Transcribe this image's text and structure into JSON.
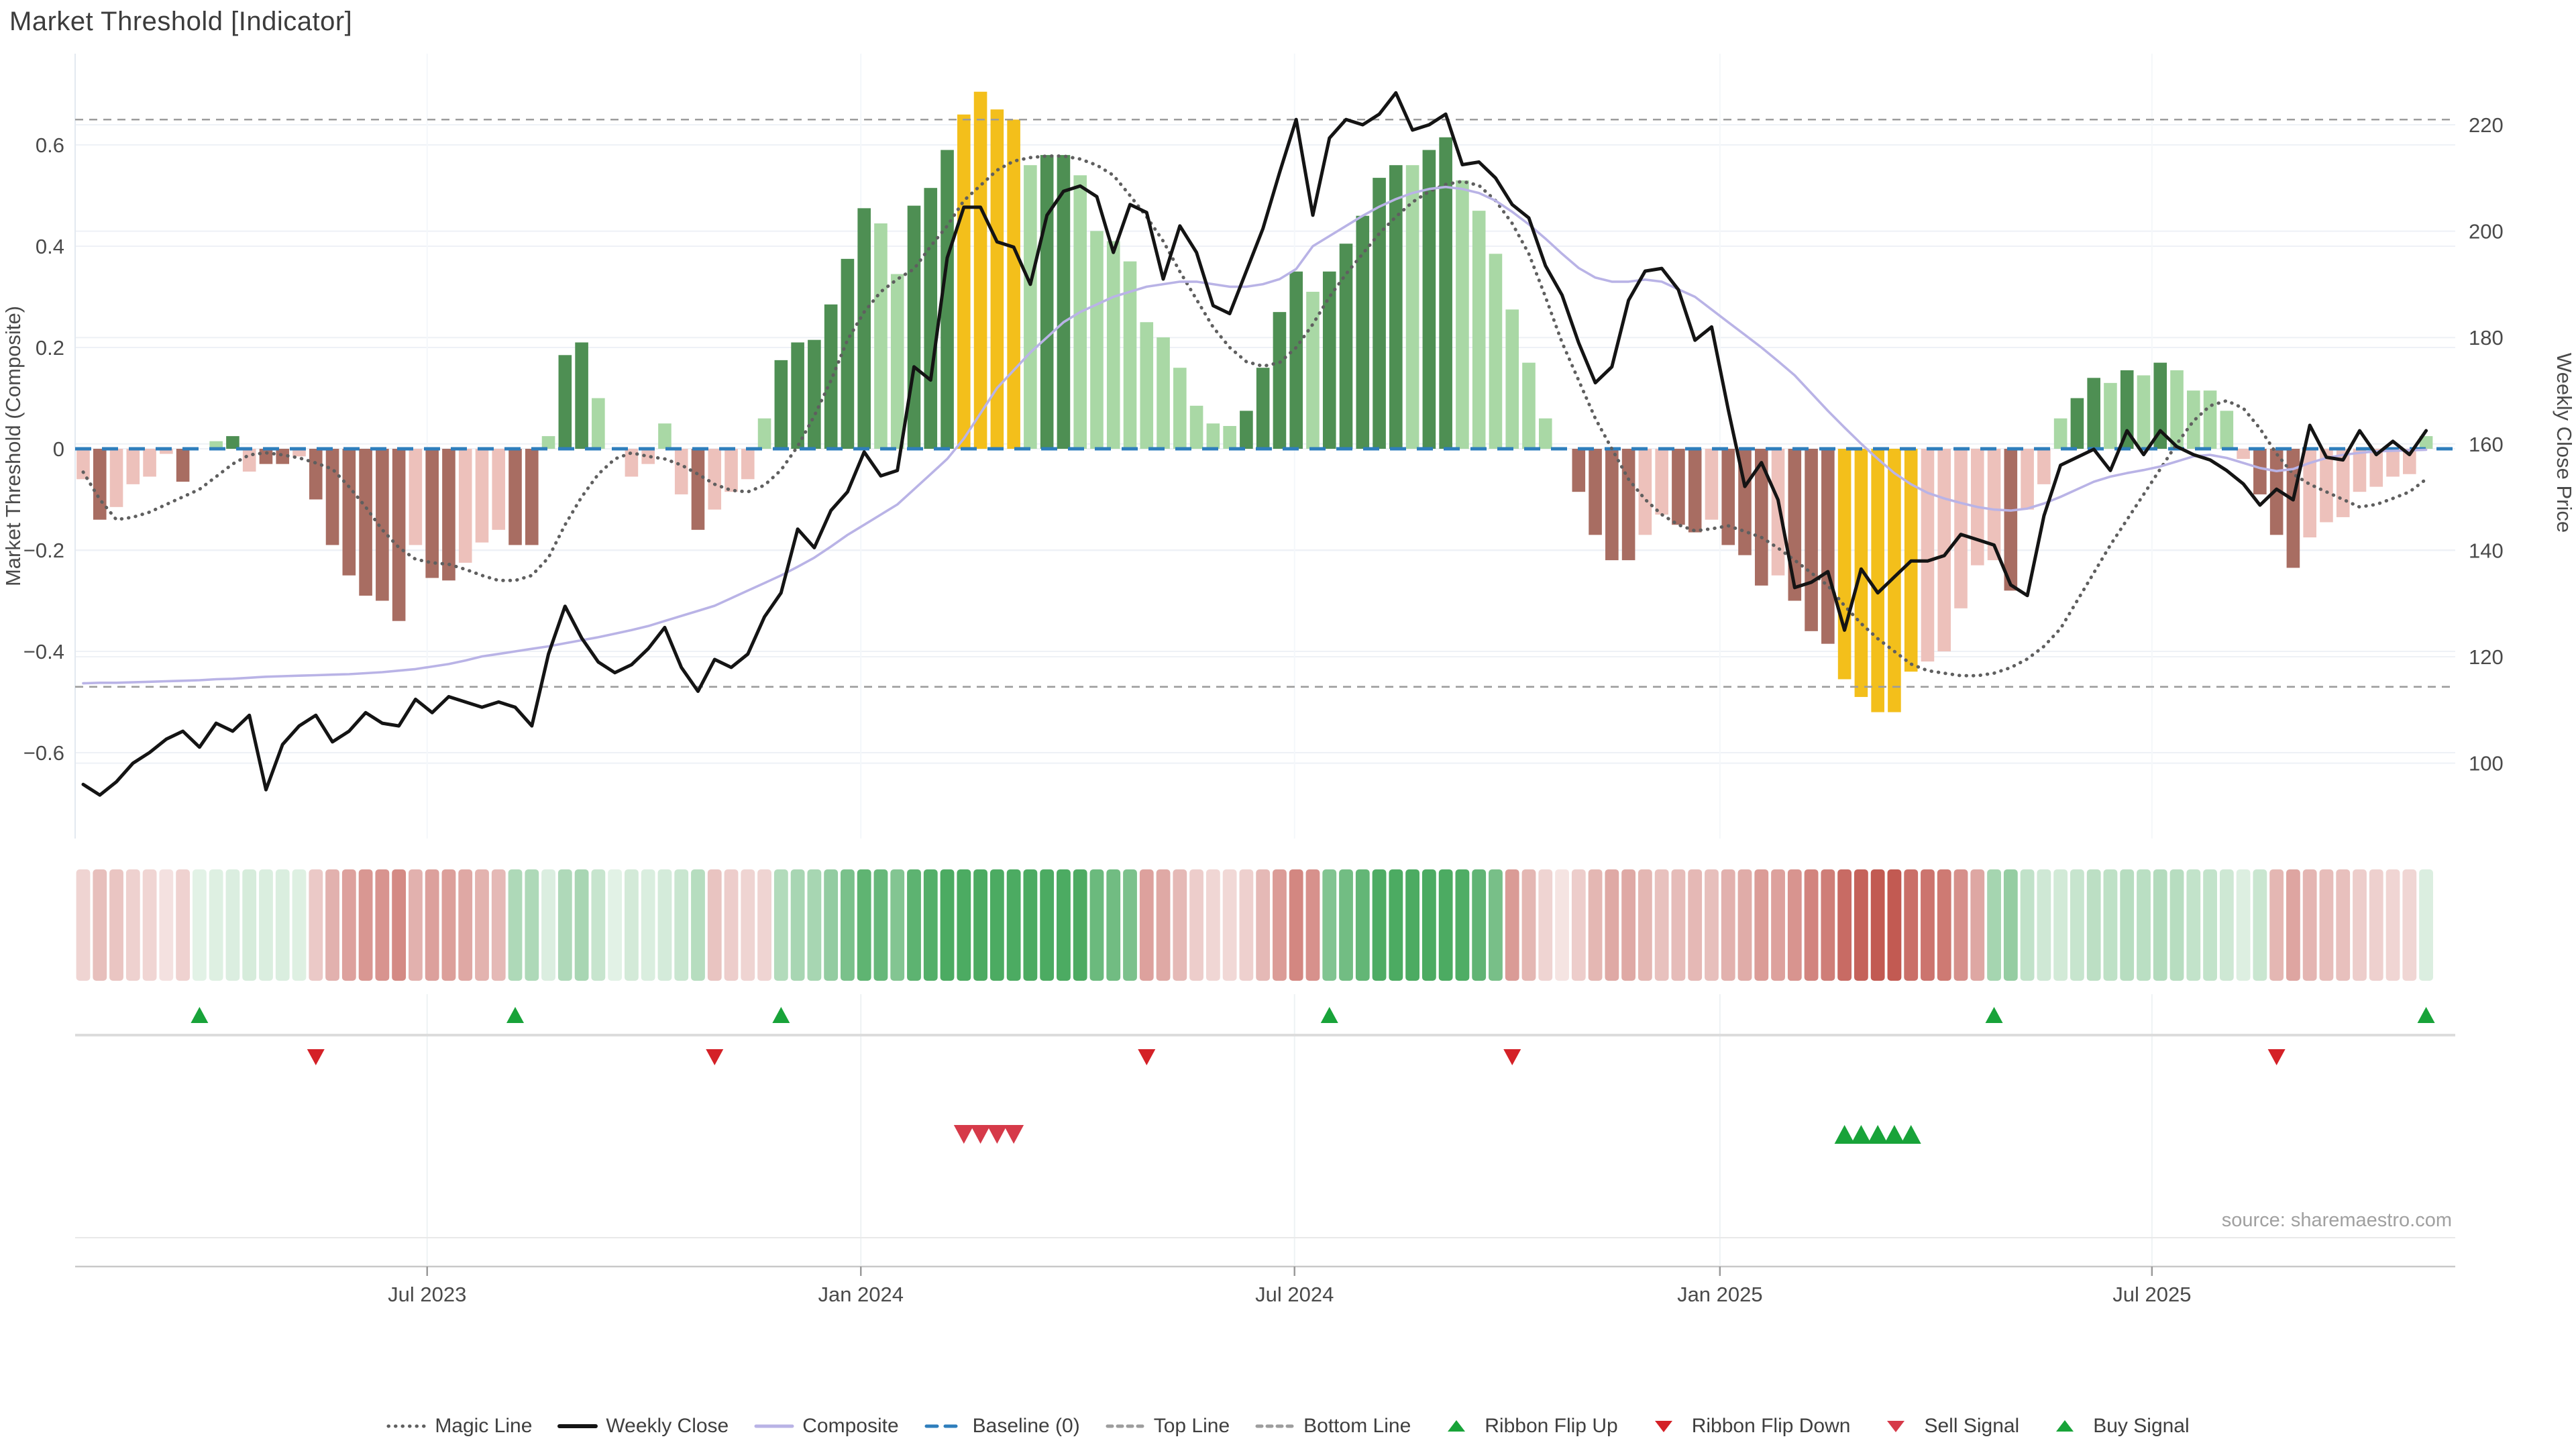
{
  "title": "Market Threshold [Indicator]",
  "footer": {
    "source": "source: sharemaestro.com"
  },
  "axes": {
    "left_label": "Market Threshold (Composite)",
    "right_label": "Weekly Close Price",
    "left_ticks": [
      "0.6",
      "0.4",
      "0.2",
      "0",
      "−0.2",
      "−0.4",
      "−0.6"
    ],
    "left_tick_values": [
      0.6,
      0.4,
      0.2,
      0,
      -0.2,
      -0.4,
      -0.6
    ],
    "right_ticks": [
      "220",
      "200",
      "180",
      "160",
      "140",
      "120",
      "100"
    ],
    "right_tick_values": [
      220,
      200,
      180,
      160,
      140,
      120,
      100
    ],
    "x_tick_labels": [
      "Jul 2023",
      "Jan 2024",
      "Jul 2024",
      "Jan 2025",
      "Jul 2025"
    ],
    "x_tick_weeks": [
      20.7,
      46.8,
      72.9,
      98.5,
      124.5
    ]
  },
  "legend": {
    "items": [
      {
        "label": "Magic Line",
        "marker": "dotted",
        "color": "#5f5f5f"
      },
      {
        "label": "Weekly Close",
        "marker": "solid",
        "color": "#141414"
      },
      {
        "label": "Composite",
        "marker": "thin",
        "color": "#b9b3e6"
      },
      {
        "label": "Baseline (0)",
        "marker": "dashed",
        "color": "#2e7ebc"
      },
      {
        "label": "Top Line",
        "marker": "dashsmall",
        "color": "#9c9c9c"
      },
      {
        "label": "Bottom Line",
        "marker": "dashsmall",
        "color": "#9c9c9c"
      },
      {
        "label": "Ribbon Flip Up",
        "marker": "triup",
        "color": "#18a339"
      },
      {
        "label": "Ribbon Flip Down",
        "marker": "tridown",
        "color": "#d42127"
      },
      {
        "label": "Sell Signal",
        "marker": "tridown",
        "color": "#d63a49"
      },
      {
        "label": "Buy Signal",
        "marker": "triup",
        "color": "#18a339"
      }
    ]
  },
  "colors": {
    "bar_light_green": "#a9d8a5",
    "bar_dark_green": "#4e8f53",
    "bar_light_red": "#edc1bb",
    "bar_dark_red": "#a86d62",
    "bar_extreme": "#f3bf1b",
    "close_line": "#141414",
    "composite_line": "#b9b3e6",
    "magic_line": "#5f5f5f",
    "baseline": "#2e7ebc",
    "threshold_line": "#9c9c9c",
    "flip_up": "#18a339",
    "flip_down": "#d42127",
    "sell": "#d63a49",
    "buy": "#18a339",
    "ribbon_green": "#4cab62",
    "ribbon_red": "#c0544c",
    "grid": "#eef1f6",
    "panel_line": "#dcdcdc",
    "axis_line": "#c9c9c9",
    "text": "#4a4a4a"
  },
  "chart_data": {
    "type": "combo",
    "x_unit": "weeks",
    "n_weeks": 142,
    "title": "Market Threshold [Indicator]",
    "ylabel_left": "Market Threshold (Composite)",
    "ylabel_right": "Weekly Close Price",
    "ylim_left": [
      -0.78,
      0.78
    ],
    "ylim_right": [
      96,
      228
    ],
    "top_line": 0.65,
    "bottom_line": -0.47,
    "baseline": 0,
    "bars": {
      "name": "Market Threshold (Composite) histogram",
      "values": [
        -0.06,
        -0.14,
        -0.115,
        -0.07,
        -0.055,
        -0.01,
        -0.065,
        0,
        0.015,
        0.025,
        -0.045,
        -0.03,
        -0.03,
        -0.015,
        -0.1,
        -0.19,
        -0.25,
        -0.29,
        -0.3,
        -0.34,
        -0.19,
        -0.255,
        -0.26,
        -0.225,
        -0.185,
        -0.16,
        -0.19,
        -0.19,
        0.025,
        0.185,
        0.21,
        0.1,
        0,
        -0.055,
        -0.03,
        0.05,
        -0.09,
        -0.16,
        -0.12,
        -0.085,
        -0.06,
        0.06,
        0.175,
        0.21,
        0.215,
        0.285,
        0.375,
        0.475,
        0.445,
        0.345,
        0.48,
        0.515,
        0.59,
        0.66,
        0.705,
        0.67,
        0.65,
        0.56,
        0.58,
        0.58,
        0.54,
        0.43,
        0.41,
        0.37,
        0.25,
        0.22,
        0.16,
        0.085,
        0.05,
        0.045,
        0.075,
        0.16,
        0.27,
        0.35,
        0.31,
        0.35,
        0.405,
        0.46,
        0.535,
        0.56,
        0.56,
        0.59,
        0.615,
        0.53,
        0.47,
        0.385,
        0.275,
        0.17,
        0.06,
        0,
        -0.085,
        -0.17,
        -0.22,
        -0.22,
        -0.17,
        -0.13,
        -0.15,
        -0.165,
        -0.14,
        -0.19,
        -0.21,
        -0.27,
        -0.25,
        -0.3,
        -0.36,
        -0.385,
        -0.455,
        -0.49,
        -0.52,
        -0.52,
        -0.44,
        -0.42,
        -0.4,
        -0.315,
        -0.23,
        -0.22,
        -0.28,
        -0.12,
        -0.07,
        0.06,
        0.1,
        0.14,
        0.13,
        0.155,
        0.145,
        0.17,
        0.155,
        0.115,
        0.115,
        0.075,
        -0.02,
        -0.09,
        -0.17,
        -0.235,
        -0.175,
        -0.145,
        -0.135,
        -0.085,
        -0.075,
        -0.055,
        -0.05,
        0.025
      ],
      "color_classes": [
        "lp",
        "dr",
        "lp",
        "lp",
        "lp",
        "lp",
        "dr",
        "z",
        "lg",
        "dg",
        "lp",
        "dr",
        "dr",
        "lp",
        "dr",
        "dr",
        "dr",
        "dr",
        "dr",
        "dr",
        "lp",
        "dr",
        "dr",
        "lp",
        "lp",
        "lp",
        "dr",
        "dr",
        "lg",
        "dg",
        "dg",
        "lg",
        "z",
        "lp",
        "lp",
        "lg",
        "lp",
        "dr",
        "lp",
        "lp",
        "lp",
        "lg",
        "dg",
        "dg",
        "dg",
        "dg",
        "dg",
        "dg",
        "lg",
        "lg",
        "dg",
        "dg",
        "dg",
        "x",
        "x",
        "x",
        "x",
        "lg",
        "dg",
        "dg",
        "lg",
        "lg",
        "lg",
        "lg",
        "lg",
        "lg",
        "lg",
        "lg",
        "lg",
        "lg",
        "dg",
        "dg",
        "dg",
        "dg",
        "lg",
        "dg",
        "dg",
        "dg",
        "dg",
        "dg",
        "lg",
        "dg",
        "dg",
        "lg",
        "lg",
        "lg",
        "lg",
        "lg",
        "lg",
        "z",
        "dr",
        "dr",
        "dr",
        "dr",
        "lp",
        "lp",
        "dr",
        "dr",
        "lp",
        "dr",
        "dr",
        "dr",
        "lp",
        "dr",
        "dr",
        "dr",
        "x",
        "x",
        "x",
        "x",
        "x",
        "lp",
        "lp",
        "lp",
        "lp",
        "lp",
        "dr",
        "lp",
        "lp",
        "lg",
        "dg",
        "dg",
        "lg",
        "dg",
        "lg",
        "dg",
        "lg",
        "lg",
        "lg",
        "lg",
        "lp",
        "dr",
        "dr",
        "dr",
        "lp",
        "lp",
        "lp",
        "lp",
        "lp",
        "lp",
        "lp",
        "lg"
      ]
    },
    "series": [
      {
        "name": "Weekly Close",
        "axis": "right",
        "values": [
          96,
          94,
          96.5,
          100,
          102,
          104.5,
          106,
          103,
          107.5,
          106,
          109,
          95,
          103.5,
          107,
          109,
          104,
          106,
          109.5,
          107.5,
          107,
          112,
          109.5,
          112.5,
          111.5,
          110.5,
          111.5,
          110.5,
          107,
          120.5,
          129.5,
          123.5,
          119,
          117,
          118.5,
          121.5,
          125.5,
          118,
          113.5,
          119.5,
          118,
          120.5,
          127.5,
          132,
          144,
          140.5,
          147.5,
          151,
          158.5,
          154,
          155,
          174.5,
          172,
          195,
          204.5,
          204.5,
          198,
          197,
          190,
          203,
          207.5,
          208.5,
          206.5,
          196,
          205,
          203.5,
          191,
          201,
          196,
          186,
          184.5,
          192.5,
          200.5,
          211,
          221,
          203,
          217.5,
          221,
          220,
          222,
          226,
          219,
          220,
          222,
          212.5,
          213,
          210,
          205,
          202.5,
          193.5,
          188,
          179,
          171.5,
          174.5,
          187,
          192.5,
          193,
          189,
          179.5,
          182,
          166.5,
          152,
          156.5,
          149.5,
          133,
          134,
          136,
          125,
          136.5,
          132,
          135,
          138,
          138,
          139,
          143,
          142,
          141,
          133.5,
          131.5,
          146.5,
          156,
          157.5,
          159,
          155,
          162.5,
          158,
          162.5,
          159.5,
          158,
          157,
          155,
          152.5,
          148.5,
          151.5,
          149.5,
          163.5,
          157.5,
          157,
          162.5,
          158,
          160.5,
          158,
          162.5
        ]
      },
      {
        "name": "Composite",
        "axis": "left",
        "values": [
          -0.463,
          -0.462,
          -0.462,
          -0.461,
          -0.46,
          -0.459,
          -0.458,
          -0.457,
          -0.455,
          -0.454,
          -0.452,
          -0.45,
          -0.449,
          -0.448,
          -0.447,
          -0.446,
          -0.445,
          -0.443,
          -0.441,
          -0.438,
          -0.435,
          -0.43,
          -0.425,
          -0.418,
          -0.41,
          -0.405,
          -0.4,
          -0.395,
          -0.39,
          -0.384,
          -0.378,
          -0.372,
          -0.365,
          -0.358,
          -0.35,
          -0.34,
          -0.33,
          -0.32,
          -0.31,
          -0.295,
          -0.28,
          -0.265,
          -0.25,
          -0.233,
          -0.215,
          -0.193,
          -0.17,
          -0.15,
          -0.13,
          -0.11,
          -0.08,
          -0.05,
          -0.02,
          0.02,
          0.07,
          0.12,
          0.155,
          0.19,
          0.22,
          0.25,
          0.27,
          0.285,
          0.3,
          0.31,
          0.32,
          0.325,
          0.33,
          0.33,
          0.325,
          0.32,
          0.32,
          0.325,
          0.335,
          0.355,
          0.4,
          0.42,
          0.44,
          0.46,
          0.478,
          0.493,
          0.505,
          0.513,
          0.517,
          0.513,
          0.505,
          0.49,
          0.468,
          0.443,
          0.415,
          0.385,
          0.357,
          0.338,
          0.33,
          0.33,
          0.334,
          0.33,
          0.315,
          0.3,
          0.275,
          0.25,
          0.225,
          0.2,
          0.173,
          0.145,
          0.11,
          0.075,
          0.042,
          0.01,
          -0.02,
          -0.048,
          -0.07,
          -0.087,
          -0.098,
          -0.107,
          -0.115,
          -0.12,
          -0.122,
          -0.118,
          -0.108,
          -0.095,
          -0.08,
          -0.065,
          -0.055,
          -0.048,
          -0.042,
          -0.035,
          -0.025,
          -0.015,
          -0.012,
          -0.018,
          -0.028,
          -0.038,
          -0.044,
          -0.04,
          -0.028,
          -0.018,
          -0.012,
          -0.008,
          -0.005,
          -0.004,
          -0.003,
          -0.002
        ]
      },
      {
        "name": "Magic Line",
        "axis": "left",
        "values": [
          -0.046,
          -0.1,
          -0.14,
          -0.135,
          -0.125,
          -0.11,
          -0.095,
          -0.08,
          -0.055,
          -0.03,
          -0.012,
          -0.008,
          -0.012,
          -0.018,
          -0.028,
          -0.04,
          -0.075,
          -0.115,
          -0.16,
          -0.195,
          -0.218,
          -0.225,
          -0.228,
          -0.238,
          -0.25,
          -0.26,
          -0.26,
          -0.25,
          -0.215,
          -0.15,
          -0.095,
          -0.05,
          -0.02,
          -0.008,
          -0.015,
          -0.02,
          -0.032,
          -0.05,
          -0.07,
          -0.082,
          -0.085,
          -0.072,
          -0.042,
          0.005,
          0.065,
          0.135,
          0.215,
          0.27,
          0.31,
          0.335,
          0.355,
          0.4,
          0.44,
          0.49,
          0.52,
          0.55,
          0.568,
          0.575,
          0.578,
          0.578,
          0.572,
          0.56,
          0.54,
          0.5,
          0.458,
          0.41,
          0.35,
          0.295,
          0.24,
          0.2,
          0.172,
          0.163,
          0.17,
          0.2,
          0.246,
          0.3,
          0.345,
          0.385,
          0.425,
          0.458,
          0.487,
          0.508,
          0.522,
          0.528,
          0.52,
          0.49,
          0.445,
          0.385,
          0.3,
          0.21,
          0.135,
          0.06,
          0,
          -0.06,
          -0.1,
          -0.13,
          -0.15,
          -0.162,
          -0.158,
          -0.152,
          -0.163,
          -0.175,
          -0.196,
          -0.22,
          -0.245,
          -0.27,
          -0.31,
          -0.345,
          -0.375,
          -0.4,
          -0.425,
          -0.438,
          -0.443,
          -0.448,
          -0.448,
          -0.443,
          -0.432,
          -0.415,
          -0.39,
          -0.355,
          -0.3,
          -0.245,
          -0.19,
          -0.14,
          -0.09,
          -0.04,
          0.01,
          0.055,
          0.085,
          0.095,
          0.08,
          0.04,
          -0.01,
          -0.05,
          -0.07,
          -0.085,
          -0.1,
          -0.115,
          -0.11,
          -0.098,
          -0.085,
          -0.06
        ]
      }
    ],
    "signals": {
      "ribbon_flip_up_weeks": [
        7,
        26,
        42,
        75,
        115,
        141
      ],
      "ribbon_flip_down_weeks": [
        14,
        38,
        64,
        86,
        132
      ],
      "sell_signal_weeks": [
        53,
        54,
        55,
        56
      ],
      "buy_signal_weeks": [
        106,
        107,
        108,
        109,
        110
      ]
    },
    "ribbon": {
      "initial_sign": "red",
      "description": "heat strip; sign flips at ribbon flip weeks, intensity follows composite magnitude"
    },
    "grid": true,
    "legend_position": "bottom"
  }
}
